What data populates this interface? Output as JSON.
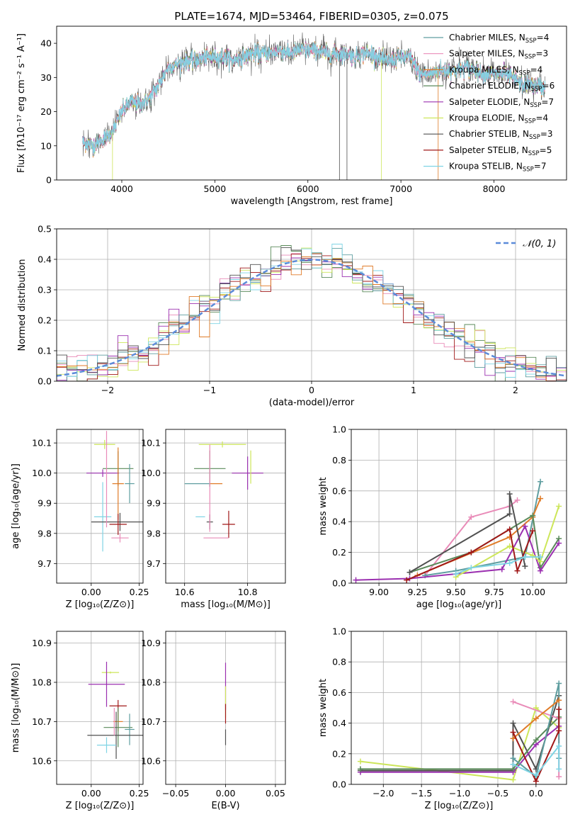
{
  "colors": {
    "Chabrier MILES": "#5f9ea0",
    "Salpeter MILES": "#e98bb8",
    "Kroupa MILES": "#e07b28",
    "Chabrier ELODIE": "#5a8a5a",
    "Salpeter ELODIE": "#9b30b0",
    "Kroupa ELODIE": "#cde65a",
    "Chabrier STELIB": "#505050",
    "Salpeter STELIB": "#a01818",
    "Kroupa STELIB": "#7fd4e4",
    "blue": "#5b8bd9",
    "grid": "#b0b0b0"
  },
  "chart_data": [
    {
      "id": "spectrum",
      "type": "line",
      "title": "PLATE=1674, MJD=53464, FIBERID=0305, z=0.075",
      "xlabel": "wavelength [Angstrom, rest frame]",
      "ylabel": "Flux [fλ10⁻¹⁷ erg cm⁻² s⁻¹ A⁻¹]",
      "xlim": [
        3300,
        8780
      ],
      "ylim": [
        0,
        45
      ],
      "xticks": [
        4000,
        5000,
        6000,
        7000,
        8000
      ],
      "yticks": [
        0,
        10,
        20,
        30,
        40
      ],
      "grid": false,
      "legend_position": "top-right",
      "legend": [
        {
          "name": "Chabrier MILES",
          "sub": "SSP",
          "n": "4"
        },
        {
          "name": "Salpeter MILES",
          "sub": "SSP",
          "n": "3"
        },
        {
          "name": "Kroupa MILES",
          "sub": "SSP",
          "n": "4"
        },
        {
          "name": "Chabrier ELODIE",
          "sub": "SSP",
          "n": "6"
        },
        {
          "name": "Salpeter ELODIE",
          "sub": "SSP",
          "n": "7"
        },
        {
          "name": "Kroupa ELODIE",
          "sub": "SSP",
          "n": "4"
        },
        {
          "name": "Chabrier STELIB",
          "sub": "SSP",
          "n": "3"
        },
        {
          "name": "Salpeter STELIB",
          "sub": "SSP",
          "n": "5"
        },
        {
          "name": "Kroupa STELIB",
          "sub": "SSP",
          "n": "7"
        }
      ],
      "continuum": {
        "x": [
          3580,
          3700,
          3800,
          3900,
          4000,
          4100,
          4200,
          4300,
          4400,
          4500,
          4600,
          4700,
          4800,
          4900,
          5000,
          5100,
          5200,
          5300,
          5400,
          5500,
          5600,
          5700,
          5800,
          5900,
          6000,
          6100,
          6200,
          6300,
          6400,
          6500,
          6600,
          6700,
          6800,
          6900,
          7000,
          7100,
          7200,
          7300,
          7400,
          7500,
          7600,
          7700,
          7800,
          7900,
          8000,
          8100,
          8200,
          8300,
          8400,
          8550
        ],
        "y": [
          11,
          10,
          12,
          14,
          20,
          23,
          22,
          24,
          28,
          33,
          34,
          35,
          35,
          36,
          36,
          36,
          35,
          36,
          37,
          37,
          37,
          38,
          37,
          38,
          38,
          38,
          37,
          37,
          37,
          36,
          37,
          37,
          35,
          35,
          36,
          36,
          31,
          31,
          32,
          32,
          32,
          33,
          32,
          31,
          31,
          31,
          30,
          28,
          28,
          27
        ]
      }
    },
    {
      "id": "residuals",
      "type": "line",
      "xlabel": "(data-model)/error",
      "ylabel": "Normed distribution",
      "xlim": [
        -2.5,
        2.5
      ],
      "ylim": [
        0,
        0.5
      ],
      "xticks": [
        -2,
        -1,
        0,
        1,
        2
      ],
      "yticks": [
        0.0,
        0.1,
        0.2,
        0.3,
        0.4,
        0.5
      ],
      "grid": true,
      "legend_position": "top-right",
      "legend": [
        {
          "name": "𝒩(0, 1)"
        }
      ],
      "curve": "standard normal pdf"
    },
    {
      "id": "age-vs-Z",
      "type": "scatter",
      "xlabel": "Z [log₁₀(Z/Z⊙)]",
      "ylabel": "age  [log₁₀(age/yr)]",
      "xlim": [
        -0.18,
        0.27
      ],
      "ylim": [
        9.635,
        10.145
      ],
      "xticks": [
        0.0,
        0.25
      ],
      "yticks": [
        9.7,
        9.8,
        9.9,
        10.0,
        10.1
      ],
      "grid": true,
      "points": [
        {
          "s": "Kroupa ELODIE",
          "x": 0.07,
          "y": 10.095,
          "xe": 0.11,
          "ye": 0.03
        },
        {
          "s": "Chabrier ELODIE",
          "x": 0.14,
          "y": 10.015,
          "xe": 0.16,
          "ye": 0.115
        },
        {
          "s": "Salpeter ELODIE",
          "x": 0.06,
          "y": 10.0,
          "xe": 0.17,
          "ye": 0.025
        },
        {
          "s": "Kroupa MILES",
          "x": 0.14,
          "y": 9.965,
          "xe": 0.06,
          "ye": 0.24
        },
        {
          "s": "Chabrier MILES",
          "x": 0.2,
          "y": 9.965,
          "xe": 0.05,
          "ye": 0.13
        },
        {
          "s": "Kroupa STELIB",
          "x": 0.06,
          "y": 9.855,
          "xe": 0.09,
          "ye": 0.23
        },
        {
          "s": "Chabrier STELIB",
          "x": 0.15,
          "y": 9.838,
          "xe": 0.3,
          "ye": 0.06
        },
        {
          "s": "Salpeter STELIB",
          "x": 0.14,
          "y": 9.83,
          "xe": 0.09,
          "ye": 0.07
        },
        {
          "s": "Salpeter MILES",
          "x": 0.15,
          "y": 9.785,
          "xe": 0.09,
          "ye": 0.03
        },
        {
          "s": "Salpeter MILES",
          "x": 0.08,
          "y": 9.98,
          "xe": 0.0,
          "ye": 0.32
        }
      ]
    },
    {
      "id": "age-vs-mass",
      "type": "scatter",
      "xlabel": "mass [log₁₀(M/M⊙)]",
      "xlim": [
        10.54,
        10.92
      ],
      "ylim": [
        9.635,
        10.145
      ],
      "xticks": [
        10.6,
        10.8
      ],
      "yticks": [
        9.7,
        9.8,
        9.9,
        10.0,
        10.1
      ],
      "grid": true,
      "points": [
        {
          "s": "Kroupa ELODIE",
          "x": 10.72,
          "y": 10.095,
          "xe": 0.15,
          "ye": 0.02
        },
        {
          "s": "Salpeter ELODIE",
          "x": 10.8,
          "y": 10.0,
          "xe": 0.1,
          "ye": 0.11
        },
        {
          "s": "Chabrier ELODIE",
          "x": 10.68,
          "y": 10.015,
          "xe": 0.1,
          "ye": 0.12
        },
        {
          "s": "Kroupa ELODIE",
          "x": 10.81,
          "y": 10.02,
          "xe": 0.0,
          "ye": 0.11
        },
        {
          "s": "Chabrier MILES",
          "x": 10.64,
          "y": 9.965,
          "xe": 0.08,
          "ye": 0.0
        },
        {
          "s": "Kroupa MILES",
          "x": 10.7,
          "y": 9.965,
          "xe": 0.04,
          "ye": 0.0
        },
        {
          "s": "Kroupa STELIB",
          "x": 10.65,
          "y": 9.855,
          "xe": 0.03,
          "ye": 0.0
        },
        {
          "s": "Chabrier STELIB",
          "x": 10.68,
          "y": 9.838,
          "xe": 0.02,
          "ye": 0.05
        },
        {
          "s": "Salpeter STELIB",
          "x": 10.74,
          "y": 9.83,
          "xe": 0.04,
          "ye": 0.09
        },
        {
          "s": "Salpeter MILES",
          "x": 10.7,
          "y": 9.785,
          "xe": 0.08,
          "ye": 0.0
        },
        {
          "s": "Salpeter MILES",
          "x": 10.68,
          "y": 9.95,
          "xe": 0.0,
          "ye": 0.29
        }
      ]
    },
    {
      "id": "weight-vs-age",
      "type": "line",
      "xlabel": "age  [log₁₀(age/yr)]",
      "ylabel": "mass weight",
      "xlim": [
        8.82,
        10.22
      ],
      "ylim": [
        0,
        1
      ],
      "xticks": [
        9.0,
        9.25,
        9.5,
        9.75,
        10.0
      ],
      "yticks": [
        0.0,
        0.2,
        0.4,
        0.6,
        0.8,
        1.0
      ],
      "grid": true,
      "series": [
        {
          "s": "Salpeter MILES",
          "x": [
            9.3,
            9.6,
            9.85,
            9.9
          ],
          "y": [
            0.05,
            0.43,
            0.5,
            0.54
          ]
        },
        {
          "s": "Chabrier MILES",
          "x": [
            9.3,
            9.5,
            9.95,
            10.05
          ],
          "y": [
            0.05,
            0.08,
            0.17,
            0.66
          ]
        },
        {
          "s": "Kroupa MILES",
          "x": [
            9.25,
            9.85,
            10.0,
            10.05
          ],
          "y": [
            0.05,
            0.3,
            0.43,
            0.55
          ]
        },
        {
          "s": "Chabrier ELODIE",
          "x": [
            9.2,
            9.6,
            10.0,
            10.05,
            10.17
          ],
          "y": [
            0.07,
            0.2,
            0.44,
            0.1,
            0.29
          ]
        },
        {
          "s": "Salpeter ELODIE",
          "x": [
            8.85,
            9.2,
            9.8,
            9.95,
            10.05,
            10.17
          ],
          "y": [
            0.02,
            0.03,
            0.09,
            0.37,
            0.08,
            0.26
          ]
        },
        {
          "s": "Kroupa ELODIE",
          "x": [
            9.5,
            9.85,
            10.0,
            10.05,
            10.17
          ],
          "y": [
            0.04,
            0.24,
            0.18,
            0.14,
            0.5
          ]
        },
        {
          "s": "Chabrier STELIB",
          "x": [
            9.2,
            9.85,
            9.85,
            9.95
          ],
          "y": [
            0.07,
            0.45,
            0.58,
            0.11
          ]
        },
        {
          "s": "Salpeter STELIB",
          "x": [
            9.18,
            9.6,
            9.85,
            9.9,
            10.0
          ],
          "y": [
            0.02,
            0.2,
            0.35,
            0.08,
            0.34
          ]
        },
        {
          "s": "Kroupa STELIB",
          "x": [
            9.5,
            9.6,
            9.85,
            9.95,
            10.05
          ],
          "y": [
            0.06,
            0.1,
            0.13,
            0.17,
            0.17
          ]
        }
      ]
    },
    {
      "id": "mass-vs-Z",
      "type": "scatter",
      "xlabel": "Z [log₁₀(Z/Z⊙)]",
      "ylabel": "mass [log₁₀(M/M⊙)]",
      "xlim": [
        -0.18,
        0.27
      ],
      "ylim": [
        10.54,
        10.93
      ],
      "xticks": [
        0.0,
        0.25
      ],
      "yticks": [
        10.6,
        10.7,
        10.8,
        10.9
      ],
      "grid": true,
      "points": [
        {
          "s": "Kroupa ELODIE",
          "x": 0.1,
          "y": 10.825,
          "xe": 0.09,
          "ye": 0.005
        },
        {
          "s": "Salpeter ELODIE",
          "x": 0.08,
          "y": 10.795,
          "xe": 0.19,
          "ye": 0.115
        },
        {
          "s": "Salpeter STELIB",
          "x": 0.14,
          "y": 10.74,
          "xe": 0.09,
          "ye": 0.03
        },
        {
          "s": "Kroupa MILES",
          "x": 0.14,
          "y": 10.7,
          "xe": 0.05,
          "ye": 0.05
        },
        {
          "s": "Chabrier ELODIE",
          "x": 0.14,
          "y": 10.685,
          "xe": 0.15,
          "ye": 0.1
        },
        {
          "s": "Chabrier MILES",
          "x": 0.2,
          "y": 10.68,
          "xe": 0.05,
          "ye": 0.08
        },
        {
          "s": "Chabrier STELIB",
          "x": 0.13,
          "y": 10.665,
          "xe": 0.3,
          "ye": 0.12
        },
        {
          "s": "Kroupa STELIB",
          "x": 0.08,
          "y": 10.64,
          "xe": 0.1,
          "ye": 0.04
        },
        {
          "s": "Salpeter MILES",
          "x": 0.12,
          "y": 10.7,
          "xe": 0.0,
          "ye": 0.07
        }
      ]
    },
    {
      "id": "mass-vs-EBV",
      "type": "scatter",
      "xlabel": "E(B-V)",
      "xlim": [
        -0.06,
        0.06
      ],
      "ylim": [
        10.54,
        10.93
      ],
      "xticks": [
        -0.05,
        0.0,
        0.05
      ],
      "yticks": [
        10.6,
        10.7,
        10.8,
        10.9
      ],
      "grid": true,
      "points": [
        {
          "s": "Salpeter ELODIE",
          "x": 0.0,
          "y": 10.79,
          "xe": 0.0,
          "ye": 0.12
        },
        {
          "s": "Kroupa ELODIE",
          "x": 0.0,
          "y": 10.75,
          "xe": 0.0,
          "ye": 0.08
        },
        {
          "s": "Salpeter STELIB",
          "x": 0.0,
          "y": 10.72,
          "xe": 0.0,
          "ye": 0.05
        },
        {
          "s": "Chabrier STELIB",
          "x": 0.0,
          "y": 10.66,
          "xe": 0.0,
          "ye": 0.04
        }
      ]
    },
    {
      "id": "weight-vs-Z",
      "type": "line",
      "xlabel": "Z [log₁₀(Z/Z⊙)]",
      "ylabel": "mass weight",
      "xlim": [
        -2.42,
        0.4
      ],
      "ylim": [
        0,
        1
      ],
      "xticks": [
        -2.0,
        -1.5,
        -1.0,
        -0.5,
        0.0
      ],
      "yticks": [
        0.0,
        0.2,
        0.4,
        0.6,
        0.8,
        1.0
      ],
      "grid": true,
      "series": [
        {
          "s": "Kroupa ELODIE",
          "x": [
            -2.3,
            -0.3,
            0.0,
            0.3
          ],
          "y": [
            0.15,
            0.03,
            0.5,
            0.37
          ]
        },
        {
          "s": "Chabrier STELIB",
          "x": [
            -2.3,
            -0.3,
            -0.3,
            0.0,
            0.3
          ],
          "y": [
            0.09,
            0.09,
            0.4,
            0.1,
            0.58
          ]
        },
        {
          "s": "Salpeter ELODIE",
          "x": [
            -2.3,
            -0.3,
            0.0,
            0.3
          ],
          "y": [
            0.08,
            0.08,
            0.26,
            0.38
          ]
        },
        {
          "s": "Chabrier ELODIE",
          "x": [
            -2.3,
            -0.3,
            0.0,
            0.3
          ],
          "y": [
            0.1,
            0.1,
            0.29,
            0.44
          ]
        },
        {
          "s": "Salpeter MILES",
          "x": [
            -0.3,
            0.3,
            0.3
          ],
          "y": [
            0.54,
            0.43,
            0.05
          ]
        },
        {
          "s": "Chabrier MILES",
          "x": [
            -0.3,
            0.0,
            0.3,
            0.3
          ],
          "y": [
            0.17,
            0.05,
            0.66,
            0.17
          ]
        },
        {
          "s": "Kroupa MILES",
          "x": [
            -0.3,
            0.0,
            0.3
          ],
          "y": [
            0.3,
            0.43,
            0.55
          ]
        },
        {
          "s": "Salpeter STELIB",
          "x": [
            -0.3,
            0.0,
            0.3,
            0.3
          ],
          "y": [
            0.34,
            0.02,
            0.35,
            0.49
          ]
        },
        {
          "s": "Kroupa STELIB",
          "x": [
            -0.3,
            0.0,
            0.3,
            0.3
          ],
          "y": [
            0.13,
            0.06,
            0.25,
            0.1
          ]
        }
      ]
    }
  ]
}
